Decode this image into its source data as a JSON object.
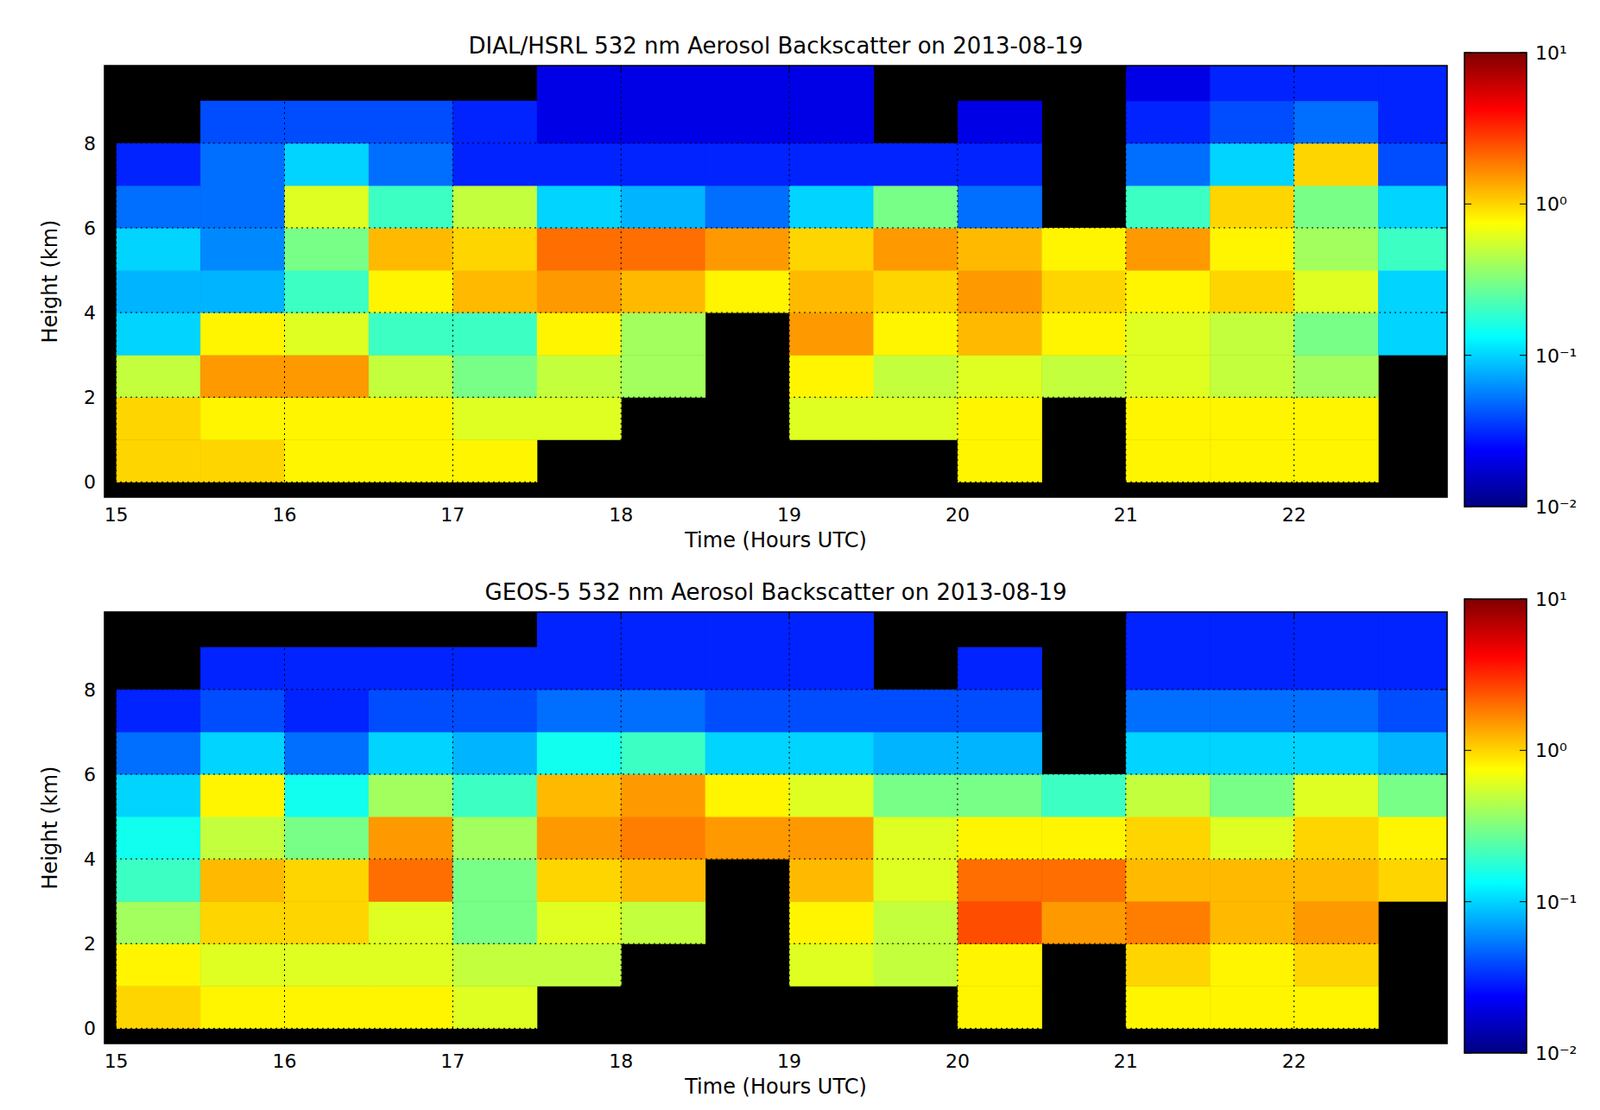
{
  "chart_data": [
    {
      "type": "heatmap",
      "title": "DIAL/HSRL 532 nm Aerosol Backscatter on 2013-08-19",
      "x_label": "Time (Hours UTC)",
      "y_label": "Height (km)",
      "xlim": [
        14.93,
        22.91
      ],
      "ylim": [
        -0.36,
        9.83
      ],
      "xticks": [
        15,
        16,
        17,
        18,
        19,
        20,
        21,
        22
      ],
      "yticks": [
        0,
        2,
        4,
        6,
        8
      ],
      "grid": true,
      "log": true,
      "x_bins": [
        15,
        15.5,
        16,
        16.5,
        17,
        17.5,
        18,
        18.5,
        19,
        19.5,
        20,
        20.5,
        21,
        21.5,
        22,
        22.5,
        23
      ],
      "y_bins": [
        0,
        1,
        2,
        3,
        4,
        5,
        6,
        7,
        8,
        9,
        10
      ],
      "cells": [
        [
          1.0,
          1.0,
          0.5,
          0.1,
          0.08,
          0.1,
          0.05,
          0.03,
          null,
          null
        ],
        [
          1.0,
          0.8,
          1.5,
          0.8,
          0.08,
          0.06,
          0.05,
          0.05,
          0.04,
          null
        ],
        [
          0.8,
          0.8,
          1.5,
          0.6,
          0.2,
          0.3,
          0.6,
          0.1,
          0.04,
          null
        ],
        [
          0.8,
          0.8,
          0.5,
          0.2,
          0.8,
          1.2,
          0.2,
          0.05,
          0.04,
          null
        ],
        [
          0.8,
          0.6,
          0.3,
          0.2,
          1.2,
          1.0,
          0.5,
          0.03,
          0.03,
          null
        ],
        [
          null,
          0.6,
          0.5,
          0.8,
          1.5,
          2.0,
          0.1,
          0.03,
          0.02,
          0.02
        ],
        [
          null,
          null,
          0.4,
          0.4,
          1.2,
          2.0,
          0.08,
          0.03,
          0.02,
          0.02
        ],
        [
          null,
          null,
          null,
          null,
          0.8,
          1.5,
          0.05,
          0.03,
          0.02,
          0.02
        ],
        [
          null,
          0.6,
          0.8,
          1.5,
          1.2,
          1.0,
          0.1,
          0.03,
          0.02,
          0.02
        ],
        [
          null,
          0.6,
          0.5,
          0.8,
          1.0,
          1.5,
          0.3,
          0.03,
          null,
          null
        ],
        [
          0.8,
          0.8,
          0.6,
          1.2,
          1.5,
          1.2,
          0.05,
          0.03,
          0.02,
          null
        ],
        [
          null,
          null,
          0.5,
          0.8,
          1.0,
          0.8,
          null,
          null,
          null,
          null
        ],
        [
          0.8,
          0.8,
          0.6,
          0.6,
          0.8,
          1.5,
          0.2,
          0.05,
          0.03,
          0.02
        ],
        [
          0.8,
          0.8,
          0.5,
          0.5,
          1.0,
          0.8,
          1.0,
          0.1,
          0.04,
          0.03
        ],
        [
          0.8,
          0.8,
          0.4,
          0.3,
          0.6,
          0.4,
          0.3,
          1.0,
          0.05,
          0.03
        ],
        [
          null,
          null,
          null,
          0.1,
          0.1,
          0.2,
          0.1,
          0.04,
          0.03,
          0.03
        ]
      ],
      "color_range": [
        0.01,
        10
      ],
      "color_ticks": [
        {
          "value": 0.01,
          "label": "10⁻²"
        },
        {
          "value": 0.1,
          "label": "10⁻¹"
        },
        {
          "value": 1,
          "label": "10⁰"
        },
        {
          "value": 10,
          "label": "10¹"
        }
      ]
    },
    {
      "type": "heatmap",
      "title": "GEOS-5 532 nm Aerosol Backscatter on 2013-08-19",
      "x_label": "Time (Hours UTC)",
      "y_label": "Height (km)",
      "xlim": [
        14.93,
        22.91
      ],
      "ylim": [
        -0.36,
        9.83
      ],
      "xticks": [
        15,
        16,
        17,
        18,
        19,
        20,
        21,
        22
      ],
      "yticks": [
        0,
        2,
        4,
        6,
        8
      ],
      "grid": true,
      "log": true,
      "x_bins": [
        15,
        15.5,
        16,
        16.5,
        17,
        17.5,
        18,
        18.5,
        19,
        19.5,
        20,
        20.5,
        21,
        21.5,
        22,
        22.5,
        23
      ],
      "y_bins": [
        0,
        1,
        2,
        3,
        4,
        5,
        6,
        7,
        8,
        9,
        10
      ],
      "cells": [
        [
          1.0,
          0.8,
          0.4,
          0.2,
          0.15,
          0.1,
          0.05,
          0.03,
          null,
          null
        ],
        [
          0.8,
          0.6,
          1.0,
          1.2,
          0.5,
          0.8,
          0.1,
          0.04,
          0.03,
          null
        ],
        [
          0.8,
          0.6,
          1.0,
          1.0,
          0.3,
          0.15,
          0.05,
          0.03,
          0.03,
          null
        ],
        [
          0.8,
          0.6,
          0.6,
          2.0,
          1.5,
          0.4,
          0.1,
          0.04,
          0.03,
          null
        ],
        [
          0.6,
          0.5,
          0.3,
          0.3,
          0.4,
          0.2,
          0.08,
          0.04,
          0.03,
          null
        ],
        [
          null,
          0.5,
          0.6,
          1.0,
          1.5,
          1.2,
          0.15,
          0.05,
          0.03,
          0.03
        ],
        [
          null,
          null,
          0.5,
          1.2,
          1.8,
          1.5,
          0.2,
          0.05,
          0.03,
          0.03
        ],
        [
          null,
          null,
          null,
          null,
          1.5,
          0.8,
          0.1,
          0.04,
          0.03,
          0.03
        ],
        [
          null,
          0.6,
          0.8,
          1.2,
          1.5,
          0.6,
          0.1,
          0.04,
          0.03,
          0.03
        ],
        [
          null,
          0.5,
          0.5,
          0.6,
          0.6,
          0.3,
          0.08,
          0.04,
          null,
          null
        ],
        [
          0.8,
          0.8,
          2.5,
          2.0,
          0.8,
          0.3,
          0.08,
          0.04,
          0.03,
          null
        ],
        [
          null,
          null,
          1.5,
          2.0,
          0.8,
          0.2,
          null,
          null,
          null,
          null
        ],
        [
          0.8,
          1.0,
          1.8,
          1.2,
          1.0,
          0.5,
          0.1,
          0.05,
          0.03,
          0.03
        ],
        [
          0.8,
          0.8,
          1.2,
          1.2,
          0.6,
          0.3,
          0.1,
          0.05,
          0.03,
          0.03
        ],
        [
          0.8,
          1.0,
          1.5,
          1.2,
          1.0,
          0.6,
          0.1,
          0.05,
          0.03,
          0.03
        ],
        [
          null,
          null,
          null,
          1.0,
          0.8,
          0.3,
          0.08,
          0.04,
          0.03,
          0.03
        ]
      ],
      "color_range": [
        0.01,
        10
      ],
      "color_ticks": [
        {
          "value": 0.01,
          "label": "10⁻²"
        },
        {
          "value": 0.1,
          "label": "10⁻¹"
        },
        {
          "value": 1,
          "label": "10⁰"
        },
        {
          "value": 10,
          "label": "10¹"
        }
      ]
    }
  ]
}
